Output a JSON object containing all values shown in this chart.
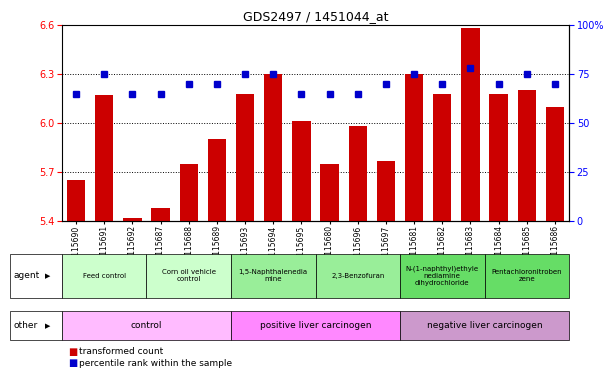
{
  "title": "GDS2497 / 1451044_at",
  "samples": [
    "GSM115690",
    "GSM115691",
    "GSM115692",
    "GSM115687",
    "GSM115688",
    "GSM115689",
    "GSM115693",
    "GSM115694",
    "GSM115695",
    "GSM115680",
    "GSM115696",
    "GSM115697",
    "GSM115681",
    "GSM115682",
    "GSM115683",
    "GSM115684",
    "GSM115685",
    "GSM115686"
  ],
  "bar_values": [
    5.65,
    6.17,
    5.42,
    5.48,
    5.75,
    5.9,
    6.18,
    6.3,
    6.01,
    5.75,
    5.98,
    5.77,
    6.3,
    6.18,
    6.58,
    6.18,
    6.2,
    6.1
  ],
  "percentile_values": [
    65,
    75,
    65,
    65,
    70,
    70,
    75,
    75,
    65,
    65,
    65,
    70,
    75,
    70,
    78,
    70,
    75,
    70
  ],
  "ylim_left": [
    5.4,
    6.6
  ],
  "ylim_right": [
    0,
    100
  ],
  "yticks_left": [
    5.4,
    5.7,
    6.0,
    6.3,
    6.6
  ],
  "yticks_right": [
    0,
    25,
    50,
    75,
    100
  ],
  "bar_color": "#cc0000",
  "percentile_color": "#0000cc",
  "agent_row": [
    {
      "label": "Feed control",
      "start": 0,
      "end": 3,
      "color": "#ccffcc"
    },
    {
      "label": "Corn oil vehicle\ncontrol",
      "start": 3,
      "end": 6,
      "color": "#ccffcc"
    },
    {
      "label": "1,5-Naphthalenedia\nmine",
      "start": 6,
      "end": 9,
      "color": "#99ee99"
    },
    {
      "label": "2,3-Benzofuran",
      "start": 9,
      "end": 12,
      "color": "#99ee99"
    },
    {
      "label": "N-(1-naphthyl)ethyle\nnediamine\ndihydrochloride",
      "start": 12,
      "end": 15,
      "color": "#66dd66"
    },
    {
      "label": "Pentachloronitroben\nzene",
      "start": 15,
      "end": 18,
      "color": "#66dd66"
    }
  ],
  "other_row": [
    {
      "label": "control",
      "start": 0,
      "end": 6,
      "color": "#ffbbff"
    },
    {
      "label": "positive liver carcinogen",
      "start": 6,
      "end": 12,
      "color": "#ff88ff"
    },
    {
      "label": "negative liver carcinogen",
      "start": 12,
      "end": 18,
      "color": "#cc99cc"
    }
  ],
  "legend_items": [
    {
      "color": "#cc0000",
      "label": "transformed count"
    },
    {
      "color": "#0000cc",
      "label": "percentile rank within the sample"
    }
  ]
}
